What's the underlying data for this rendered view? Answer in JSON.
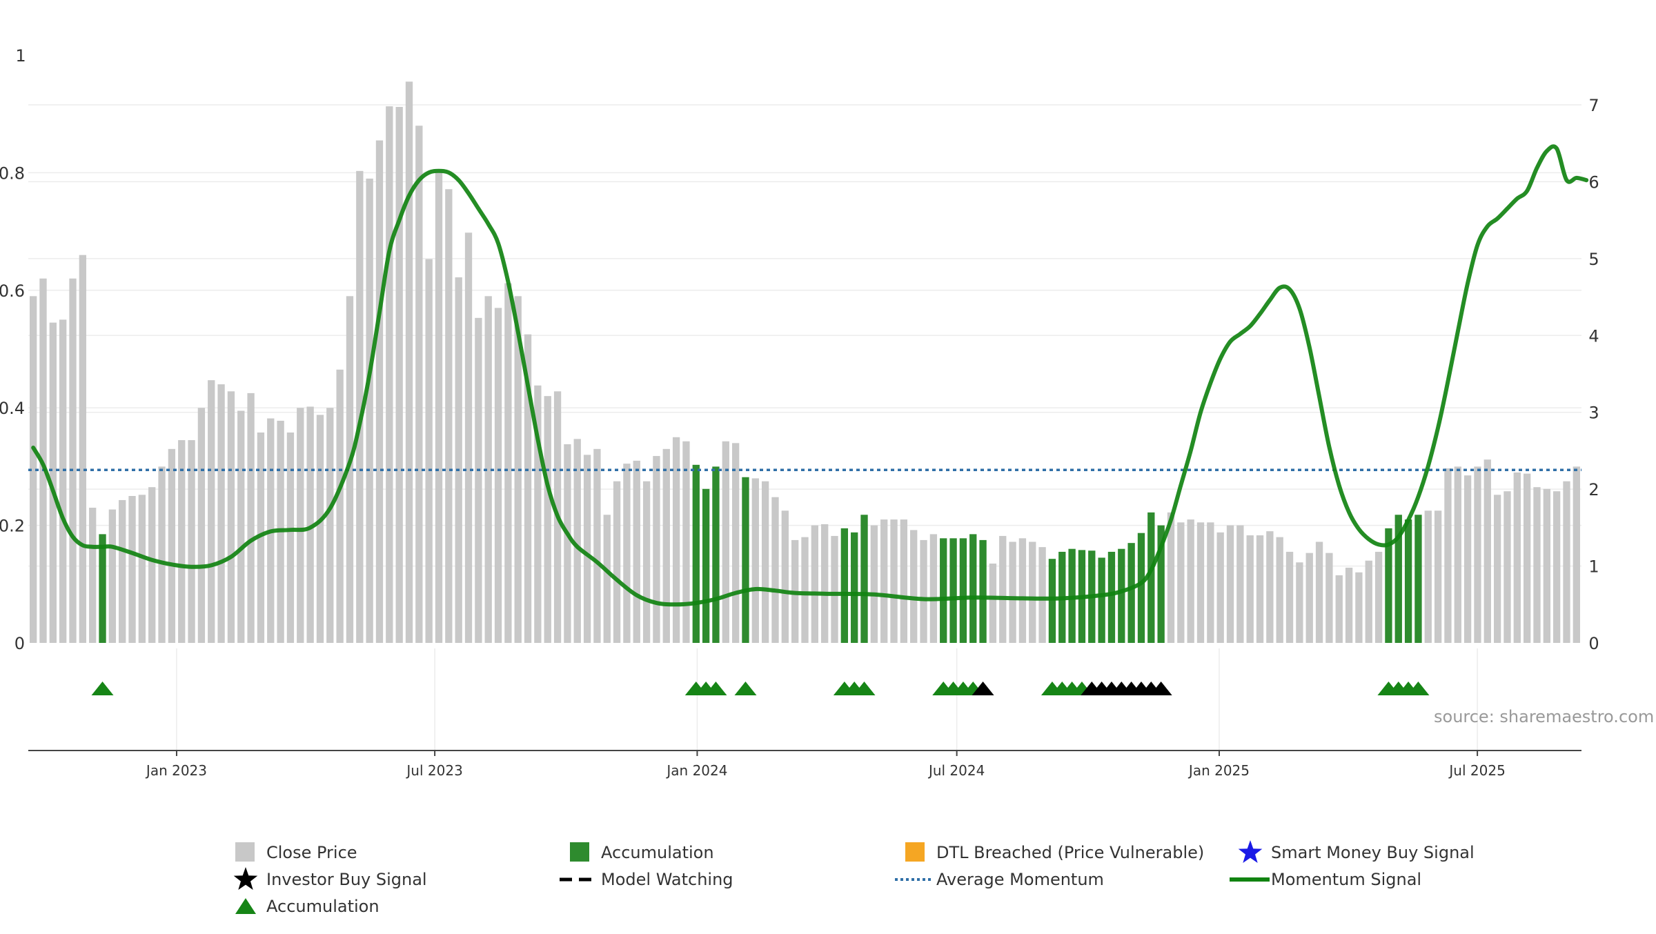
{
  "source_text": "source: sharemaestro.com",
  "colors": {
    "close_price": "#c8c8c8",
    "accumulation_bar": "#2e8b2e",
    "accumulation_marker": "#168516",
    "investor_signal": "#000000",
    "dtl": "#f5a623",
    "smart_money": "#1a1ae6",
    "momentum": "#118311",
    "average_momentum": "#2f6fa7",
    "grid": "#ececec"
  },
  "legend": {
    "close_price": "Close Price",
    "accumulation_bar": "Accumulation",
    "dtl": "DTL Breached (Price Vulnerable)",
    "smart_money": "Smart Money Buy Signal",
    "investor_signal": "Investor Buy Signal",
    "model_watching": "Model Watching",
    "average_momentum": "Average Momentum",
    "momentum": "Momentum Signal",
    "accumulation_marker": "Accumulation"
  },
  "chart_data": {
    "type": "bar",
    "x_start": "2022-09-19",
    "x_end": "2025-09-12",
    "x_ticks": [
      {
        "label": "Jan 2023",
        "date": "2023-01-01"
      },
      {
        "label": "Jul 2023",
        "date": "2023-07-01"
      },
      {
        "label": "Jan 2024",
        "date": "2024-01-01"
      },
      {
        "label": "Jul 2024",
        "date": "2024-07-01"
      },
      {
        "label": "Jan 2025",
        "date": "2025-01-01"
      },
      {
        "label": "Jul 2025",
        "date": "2025-07-01"
      }
    ],
    "y_left": {
      "ylim": [
        0,
        1
      ],
      "ticks": [
        0,
        0.2,
        0.4,
        0.6,
        0.8
      ],
      "top_label": "1",
      "tick_labels": [
        "0",
        "0.2",
        "0.4",
        "0.6",
        "0.8"
      ]
    },
    "y_right": {
      "ylim": [
        0,
        7.65
      ],
      "ticks": [
        0,
        1,
        2,
        3,
        4,
        5,
        6,
        7
      ],
      "tick_labels": [
        "0",
        "1",
        "2",
        "3",
        "4",
        "5",
        "6",
        "7"
      ]
    },
    "average_momentum": 2.25,
    "close_price": [
      0.59,
      0.62,
      0.545,
      0.55,
      0.62,
      0.66,
      0.23,
      0.185,
      0.227,
      0.243,
      0.25,
      0.252,
      0.265,
      0.3,
      0.33,
      0.345,
      0.345,
      0.4,
      0.447,
      0.44,
      0.428,
      0.395,
      0.425,
      0.358,
      0.382,
      0.378,
      0.358,
      0.4,
      0.402,
      0.388,
      0.4,
      0.465,
      0.59,
      0.803,
      0.79,
      0.855,
      0.913,
      0.912,
      0.955,
      0.88,
      0.653,
      0.8,
      0.772,
      0.622,
      0.698,
      0.553,
      0.59,
      0.57,
      0.612,
      0.59,
      0.525,
      0.438,
      0.42,
      0.428,
      0.338,
      0.347,
      0.32,
      0.33,
      0.218,
      0.275,
      0.305,
      0.31,
      0.275,
      0.318,
      0.33,
      0.35,
      0.343,
      0.303,
      0.262,
      0.3,
      0.343,
      0.34,
      0.282,
      0.28,
      0.275,
      0.248,
      0.225,
      0.175,
      0.18,
      0.2,
      0.202,
      0.182,
      0.195,
      0.188,
      0.218,
      0.2,
      0.21,
      0.21,
      0.21,
      0.192,
      0.175,
      0.185,
      0.178,
      0.178,
      0.178,
      0.185,
      0.175,
      0.135,
      0.182,
      0.172,
      0.178,
      0.172,
      0.163,
      0.143,
      0.155,
      0.16,
      0.158,
      0.157,
      0.145,
      0.155,
      0.16,
      0.17,
      0.187,
      0.222,
      0.2,
      0.222,
      0.205,
      0.21,
      0.205,
      0.205,
      0.188,
      0.2,
      0.2,
      0.183,
      0.183,
      0.19,
      0.18,
      0.155,
      0.137,
      0.153,
      0.172,
      0.153,
      0.115,
      0.128,
      0.12,
      0.14,
      0.155,
      0.195,
      0.218,
      0.21,
      0.218,
      0.225,
      0.225,
      0.297,
      0.3,
      0.285,
      0.3,
      0.312,
      0.252,
      0.258,
      0.29,
      0.288,
      0.265,
      0.262,
      0.258,
      0.275,
      0.3
    ],
    "accumulation_bar_indices": [
      7,
      67,
      68,
      69,
      72,
      82,
      83,
      84,
      92,
      93,
      94,
      95,
      96,
      103,
      104,
      105,
      106,
      107,
      108,
      109,
      110,
      111,
      112,
      113,
      114,
      137,
      138,
      139,
      140
    ],
    "momentum": [
      [
        0,
        2.54
      ],
      [
        1,
        2.32
      ],
      [
        2,
        1.98
      ],
      [
        3,
        1.62
      ],
      [
        4,
        1.38
      ],
      [
        5,
        1.27
      ],
      [
        6,
        1.25
      ],
      [
        7,
        1.25
      ],
      [
        8,
        1.25
      ],
      [
        10,
        1.17
      ],
      [
        12,
        1.08
      ],
      [
        14,
        1.02
      ],
      [
        16,
        0.99
      ],
      [
        18,
        1.01
      ],
      [
        20,
        1.12
      ],
      [
        22,
        1.33
      ],
      [
        24,
        1.45
      ],
      [
        26,
        1.47
      ],
      [
        28,
        1.5
      ],
      [
        30,
        1.75
      ],
      [
        32,
        2.35
      ],
      [
        33,
        2.85
      ],
      [
        34,
        3.5
      ],
      [
        35,
        4.3
      ],
      [
        36,
        5.1
      ],
      [
        37,
        5.5
      ],
      [
        38,
        5.82
      ],
      [
        39,
        6.02
      ],
      [
        40,
        6.12
      ],
      [
        41,
        6.14
      ],
      [
        42,
        6.12
      ],
      [
        43,
        6.02
      ],
      [
        44,
        5.85
      ],
      [
        45,
        5.65
      ],
      [
        46,
        5.45
      ],
      [
        47,
        5.2
      ],
      [
        48,
        4.7
      ],
      [
        49,
        4.05
      ],
      [
        50,
        3.35
      ],
      [
        51,
        2.65
      ],
      [
        52,
        2.05
      ],
      [
        53,
        1.65
      ],
      [
        54,
        1.42
      ],
      [
        55,
        1.25
      ],
      [
        57,
        1.05
      ],
      [
        59,
        0.82
      ],
      [
        61,
        0.62
      ],
      [
        63,
        0.52
      ],
      [
        65,
        0.5
      ],
      [
        67,
        0.52
      ],
      [
        69,
        0.57
      ],
      [
        71,
        0.65
      ],
      [
        73,
        0.7
      ],
      [
        75,
        0.68
      ],
      [
        77,
        0.65
      ],
      [
        80,
        0.64
      ],
      [
        85,
        0.63
      ],
      [
        90,
        0.57
      ],
      [
        95,
        0.59
      ],
      [
        100,
        0.58
      ],
      [
        104,
        0.58
      ],
      [
        108,
        0.62
      ],
      [
        110,
        0.67
      ],
      [
        112,
        0.78
      ],
      [
        113,
        0.95
      ],
      [
        114,
        1.25
      ],
      [
        115,
        1.6
      ],
      [
        116,
        2.05
      ],
      [
        117,
        2.5
      ],
      [
        118,
        3.0
      ],
      [
        119,
        3.38
      ],
      [
        120,
        3.7
      ],
      [
        121,
        3.92
      ],
      [
        122,
        4.02
      ],
      [
        123,
        4.12
      ],
      [
        124,
        4.28
      ],
      [
        125,
        4.46
      ],
      [
        126,
        4.62
      ],
      [
        127,
        4.6
      ],
      [
        128,
        4.35
      ],
      [
        129,
        3.85
      ],
      [
        130,
        3.2
      ],
      [
        131,
        2.55
      ],
      [
        132,
        2.05
      ],
      [
        133,
        1.7
      ],
      [
        134,
        1.48
      ],
      [
        135,
        1.35
      ],
      [
        136,
        1.28
      ],
      [
        137,
        1.28
      ],
      [
        138,
        1.38
      ],
      [
        139,
        1.6
      ],
      [
        140,
        1.9
      ],
      [
        141,
        2.3
      ],
      [
        142,
        2.8
      ],
      [
        143,
        3.4
      ],
      [
        144,
        4.05
      ],
      [
        145,
        4.68
      ],
      [
        146,
        5.18
      ],
      [
        147,
        5.42
      ],
      [
        148,
        5.52
      ],
      [
        149,
        5.65
      ],
      [
        150,
        5.78
      ],
      [
        151,
        5.88
      ],
      [
        152,
        6.18
      ],
      [
        153,
        6.4
      ],
      [
        154,
        6.43
      ],
      [
        155,
        6.02
      ],
      [
        156,
        6.05
      ],
      [
        157,
        6.02
      ]
    ],
    "accumulation_markers": [
      7,
      67,
      68,
      69,
      72,
      82,
      83,
      84,
      92,
      93,
      94,
      95,
      103,
      104,
      105,
      106,
      137,
      138,
      139,
      140
    ],
    "investor_signals": [
      96,
      107,
      108,
      109,
      110,
      111,
      112,
      113,
      114
    ]
  }
}
